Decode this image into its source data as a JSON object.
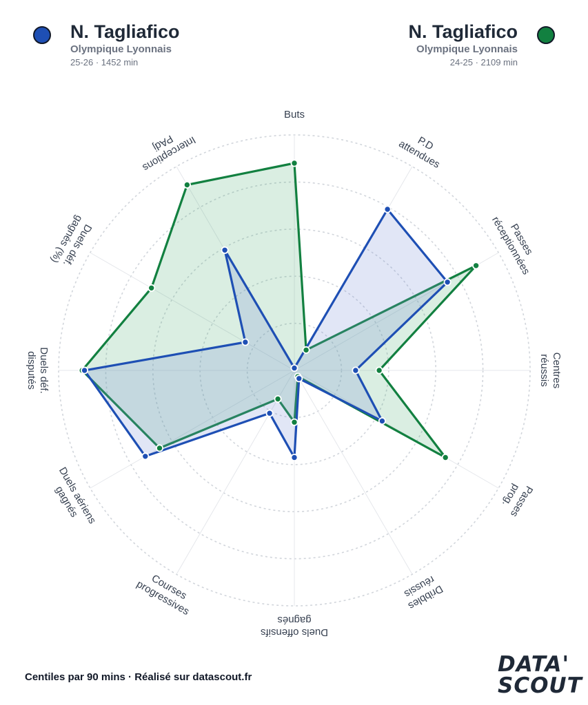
{
  "players": [
    {
      "name": "N. Tagliafico",
      "team": "Olympique Lyonnais",
      "season": "25-26 · 1452 min",
      "color": "#1e4fb4",
      "fill": "rgba(120,140,215,0.22)"
    },
    {
      "name": "N. Tagliafico",
      "team": "Olympique Lyonnais",
      "season": "24-25 · 2109 min",
      "color": "#128040",
      "fill": "rgba(70,170,110,0.20)"
    }
  ],
  "footer": "Centiles par 90 mins · Réalisé sur datascout.fr",
  "logo": {
    "line1": "DATA'",
    "line2": "SCOUT"
  },
  "chart_data": {
    "type": "radar",
    "rmax": 100,
    "grid_rings": [
      20,
      40,
      60,
      80,
      100
    ],
    "axes": [
      {
        "label": [
          "Buts"
        ]
      },
      {
        "label": [
          "P.D",
          "attendues"
        ]
      },
      {
        "label": [
          "Passes",
          "réceptionnées"
        ]
      },
      {
        "label": [
          "Centres",
          "réussis"
        ]
      },
      {
        "label": [
          "Passes",
          "prog."
        ]
      },
      {
        "label": [
          "Dribbles",
          "réussis"
        ]
      },
      {
        "label": [
          "Duels offensifs",
          "gagnés"
        ]
      },
      {
        "label": [
          "Courses",
          "progressives"
        ]
      },
      {
        "label": [
          "Duels aériens",
          "gagnés"
        ]
      },
      {
        "label": [
          "Duels déf.",
          "disputés"
        ]
      },
      {
        "label": [
          "Duels déf.",
          "gagnés (%)"
        ]
      },
      {
        "label": [
          "Interceptions",
          "PAdj"
        ]
      }
    ],
    "series": [
      {
        "name": "N. Tagliafico",
        "values": [
          1,
          79,
          75,
          26,
          43,
          4,
          37,
          21,
          73,
          89,
          24,
          59
        ]
      },
      {
        "name": "N. Tagliafico",
        "values": [
          88,
          10,
          89,
          36,
          74,
          3,
          22,
          14,
          66,
          90,
          70,
          91
        ]
      }
    ]
  }
}
